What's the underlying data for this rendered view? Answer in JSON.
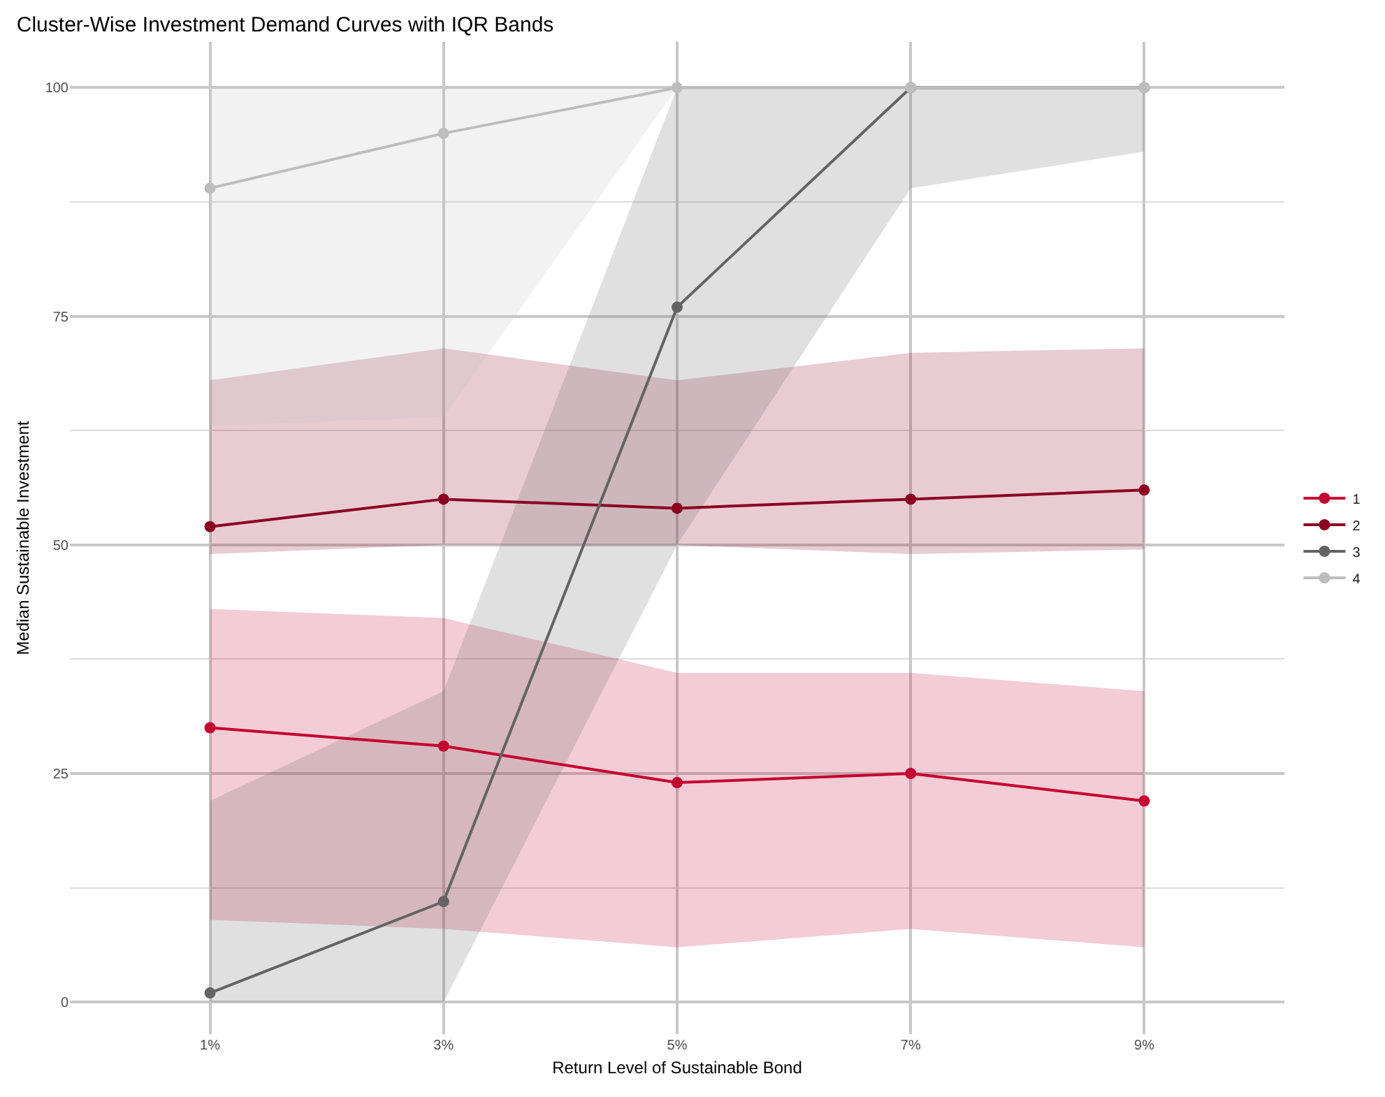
{
  "chart_data": {
    "type": "line",
    "title": "Cluster-Wise Investment Demand Curves with IQR Bands",
    "xlabel": "Return Level of Sustainable Bond",
    "ylabel": "Median Sustainable Investment",
    "categories": [
      "1%",
      "3%",
      "5%",
      "7%",
      "9%"
    ],
    "series": [
      {
        "name": "1",
        "color": "#c4002f",
        "values": [
          30,
          28,
          24,
          25,
          22
        ],
        "lower": [
          9,
          8,
          6,
          8,
          6
        ],
        "upper": [
          43,
          42,
          36,
          36,
          34
        ]
      },
      {
        "name": "2",
        "color": "#8b0020",
        "values": [
          52,
          55,
          54,
          55,
          56
        ],
        "lower": [
          49,
          50,
          50,
          49,
          49.5
        ],
        "upper": [
          68,
          71.5,
          68,
          71,
          71.5
        ]
      },
      {
        "name": "3",
        "color": "#636363",
        "values": [
          1,
          11,
          76,
          100,
          100
        ],
        "lower": [
          0,
          0,
          50,
          89,
          93
        ],
        "upper": [
          22,
          34,
          100,
          100,
          100
        ]
      },
      {
        "name": "4",
        "color": "#bdbdbd",
        "values": [
          89,
          95,
          100,
          100,
          100
        ],
        "lower": [
          63,
          64,
          100,
          100,
          100
        ],
        "upper": [
          100,
          100,
          100,
          100,
          100
        ]
      }
    ],
    "ylim": [
      -3.5,
      105
    ],
    "yticks": [
      0,
      25,
      50,
      75,
      100
    ],
    "grid": true,
    "legend": "right",
    "marker": "circle",
    "line_style": "solid"
  }
}
